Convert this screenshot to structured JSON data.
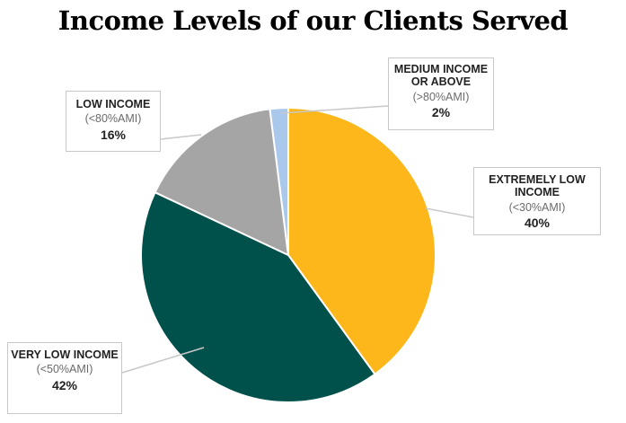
{
  "chart_data": {
    "type": "pie",
    "title": "Income Levels of our Clients Served",
    "slices": [
      {
        "label": "EXTREMELY LOW INCOME",
        "sublabel": "(<30%AMI)",
        "value": 40,
        "value_label": "40%",
        "color": "#FDB71A"
      },
      {
        "label": "VERY LOW INCOME",
        "sublabel": "(<50%AMI)",
        "value": 42,
        "value_label": "42%",
        "color": "#00504C"
      },
      {
        "label": "LOW INCOME",
        "sublabel": "(<80%AMI)",
        "value": 16,
        "value_label": "16%",
        "color": "#A5A5A5"
      },
      {
        "label": "MEDIUM INCOME OR ABOVE",
        "sublabel": "(>80%AMI)",
        "value": 2,
        "value_label": "2%",
        "color": "#A9C8EC"
      }
    ]
  }
}
